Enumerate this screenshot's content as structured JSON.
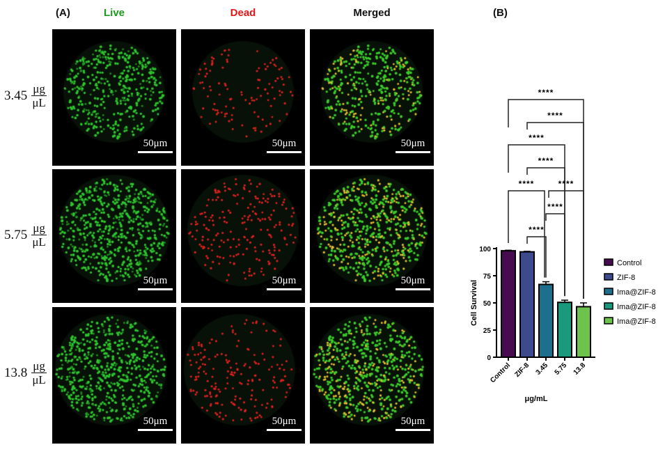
{
  "panel_a": {
    "label": "(A)",
    "columns": [
      {
        "title": "Live",
        "color": "#1a9a1a"
      },
      {
        "title": "Dead",
        "color": "#e01818"
      },
      {
        "title": "Merged",
        "color": "#111111"
      }
    ],
    "rows": [
      {
        "value": "3.45",
        "num": "μg",
        "den": "μL"
      },
      {
        "value": "5.75",
        "num": "μg",
        "den": "μL"
      },
      {
        "value": "13.8",
        "num": "μg",
        "den": "μL"
      }
    ],
    "scale_bar": "50μm"
  },
  "panel_b": {
    "label": "(B)"
  },
  "chart_data": {
    "type": "bar",
    "categories": [
      "Control",
      "ZIF-8",
      "3.45",
      "5.75",
      "13.8"
    ],
    "values": [
      98,
      97,
      67,
      50.5,
      46.5
    ],
    "errors": [
      0.5,
      0.5,
      2.5,
      2,
      3.5
    ],
    "colors": [
      "#470b4f",
      "#3d4a8e",
      "#1e6e8e",
      "#1a9a7c",
      "#6cc44c"
    ],
    "xlabel": "μg/mL",
    "ylabel": "Cell Survival",
    "ylim": [
      0,
      100
    ],
    "yticks": [
      "0",
      "25",
      "50",
      "75",
      "100"
    ],
    "legend": [
      "Control",
      "ZIF-8",
      "Ima@ZIF-8",
      "Ima@ZIF-8",
      "Ima@ZIF-8"
    ],
    "legend_placement": "right",
    "significance": [
      {
        "from": "Control",
        "to": "13.8",
        "label": "****"
      },
      {
        "from": "ZIF-8",
        "to": "13.8",
        "label": "****"
      },
      {
        "from": "Control",
        "to": "5.75",
        "label": "****"
      },
      {
        "from": "ZIF-8",
        "to": "5.75",
        "label": "****"
      },
      {
        "from": "Control",
        "to": "3.45",
        "label": "****"
      },
      {
        "from": "3.45",
        "to": "13.8",
        "label": "****"
      },
      {
        "from": "3.45",
        "to": "5.75",
        "label": "****"
      },
      {
        "from": "ZIF-8",
        "to": "3.45",
        "label": "****"
      }
    ]
  }
}
